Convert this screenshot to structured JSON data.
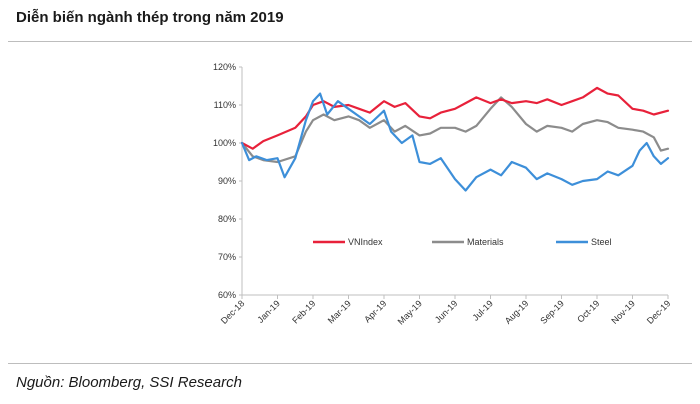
{
  "header": {
    "title": "Diễn biến ngành thép trong năm 2019"
  },
  "footer": {
    "source": "Nguồn: Bloomberg, SSI Research"
  },
  "colors": {
    "vnindex": "#e8213a",
    "materials": "#8c8c8c",
    "steel": "#3d8fd9"
  },
  "chart_data": {
    "type": "line",
    "title": "Diễn biến ngành thép trong năm 2019",
    "xlabel": "",
    "ylabel": "",
    "ylim": [
      60,
      120
    ],
    "yticks": [
      "120%",
      "110%",
      "100%",
      "90%",
      "80%",
      "70%",
      "60%"
    ],
    "yunit": "%",
    "categories": [
      "Dec-18",
      "Jan-19",
      "Feb-19",
      "Mar-19",
      "Apr-19",
      "May-19",
      "Jun-19",
      "Jul-19",
      "Aug-19",
      "Sep-19",
      "Oct-19",
      "Nov-19",
      "Dec-19"
    ],
    "grid": false,
    "legend": "inside-lower",
    "series": [
      {
        "name": "VNIndex",
        "x": [
          0,
          0.3,
          0.6,
          1,
          1.5,
          1.8,
          2,
          2.3,
          2.6,
          3,
          3.3,
          3.6,
          4,
          4.3,
          4.6,
          5,
          5.3,
          5.6,
          6,
          6.3,
          6.6,
          7,
          7.3,
          7.6,
          8,
          8.3,
          8.6,
          9,
          9.3,
          9.6,
          10,
          10.3,
          10.6,
          11,
          11.3,
          11.6,
          12
        ],
        "values": [
          100,
          98.5,
          100.5,
          102,
          104,
          107,
          110,
          111,
          109.5,
          110,
          109,
          108,
          111,
          109.5,
          110.5,
          107,
          106.5,
          108,
          109,
          110.5,
          112,
          110.5,
          111.5,
          110.5,
          111,
          110.5,
          111.5,
          110,
          111,
          112,
          114.5,
          113,
          112.5,
          109,
          108.5,
          107.5,
          108.5
        ]
      },
      {
        "name": "Materials",
        "x": [
          0,
          0.3,
          0.6,
          1,
          1.5,
          1.8,
          2,
          2.3,
          2.6,
          3,
          3.3,
          3.6,
          4,
          4.3,
          4.6,
          5,
          5.3,
          5.6,
          6,
          6.3,
          6.6,
          7,
          7.3,
          7.6,
          8,
          8.3,
          8.6,
          9,
          9.3,
          9.6,
          10,
          10.3,
          10.6,
          11,
          11.3,
          11.6,
          11.8,
          12
        ],
        "values": [
          100,
          96.5,
          95.5,
          95,
          96.5,
          103,
          106,
          107.5,
          106,
          107,
          106,
          104,
          106,
          103,
          104.5,
          102,
          102.5,
          104,
          104,
          103,
          104.5,
          109,
          112,
          109.5,
          105,
          103,
          104.5,
          104,
          103,
          105,
          106,
          105.5,
          104,
          103.5,
          103,
          101.5,
          98,
          98.5
        ]
      },
      {
        "name": "Steel",
        "x": [
          0,
          0.2,
          0.4,
          0.7,
          1,
          1.2,
          1.5,
          1.8,
          2,
          2.2,
          2.4,
          2.7,
          3,
          3.3,
          3.6,
          4,
          4.2,
          4.5,
          4.8,
          5,
          5.3,
          5.6,
          6,
          6.3,
          6.6,
          7,
          7.3,
          7.6,
          8,
          8.3,
          8.6,
          9,
          9.3,
          9.6,
          10,
          10.3,
          10.6,
          11,
          11.2,
          11.4,
          11.6,
          11.8,
          12
        ],
        "values": [
          100,
          95.5,
          96.5,
          95.5,
          96,
          91,
          96,
          106,
          111,
          113,
          107.5,
          111,
          109,
          107,
          105,
          108.5,
          103,
          100,
          102,
          95,
          94.5,
          96,
          90.5,
          87.5,
          91,
          93,
          91.5,
          95,
          93.5,
          90.5,
          92,
          90.5,
          89,
          90,
          90.5,
          92.5,
          91.5,
          94,
          98,
          100,
          96.5,
          94.5,
          96
        ]
      }
    ]
  }
}
